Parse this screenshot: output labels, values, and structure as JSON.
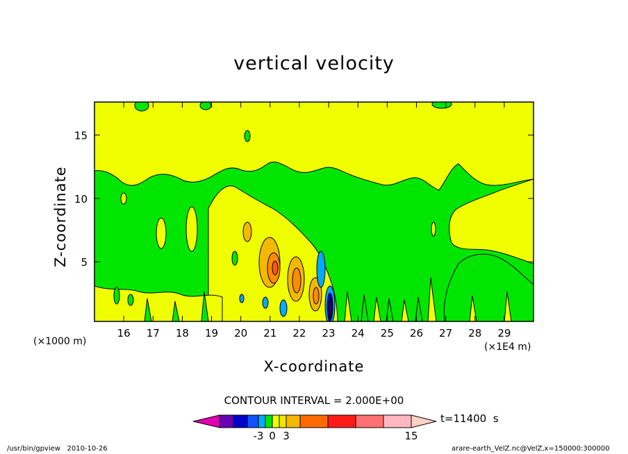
{
  "chart_data": {
    "type": "heatmap",
    "title": "vertical velocity",
    "xlabel": "X-coordinate",
    "ylabel": "Z-coordinate",
    "x_ticks": [
      "16",
      "17",
      "18",
      "19",
      "20",
      "21",
      "22",
      "23",
      "24",
      "25",
      "26",
      "27",
      "28",
      "29"
    ],
    "x_tick_values": [
      16,
      17,
      18,
      19,
      20,
      21,
      22,
      23,
      24,
      25,
      26,
      27,
      28,
      29
    ],
    "y_ticks": [
      "5",
      "10",
      "15"
    ],
    "y_tick_values": [
      5,
      10,
      15
    ],
    "xlim": [
      15.0,
      30.0
    ],
    "ylim": [
      0.3,
      17.6
    ],
    "x_unit_left": "(×1000 m)",
    "x_unit_right": "(×1E4 m)",
    "contour_interval_label": "CONTOUR INTERVAL = 2.000E+00",
    "time_label": "t=11400  s",
    "colorbar_levels": [
      -9,
      -7,
      -5,
      -3,
      -1,
      0,
      1,
      3,
      5,
      7,
      9,
      11,
      13,
      15,
      17
    ],
    "colorbar_tick_labels": [
      "-3",
      "0",
      "3",
      "15"
    ],
    "colorbar_tick_values": [
      -3,
      0,
      3,
      15
    ],
    "colors": {
      "background_dominant": "#f0ff00",
      "secondary": "#00e600",
      "positive_peak": "#ff6a00",
      "negative": "#00aaff",
      "frame": "#000000"
    },
    "features": [
      {
        "x": 21.25,
        "z": 4.5,
        "value": 9
      },
      {
        "x": 21.9,
        "z": 3.4,
        "value": 7
      },
      {
        "x": 22.5,
        "z": 2.2,
        "value": 5
      },
      {
        "x": 23.05,
        "z": 1.3,
        "value": -9
      },
      {
        "x": 22.8,
        "z": 4.5,
        "value": -3
      }
    ]
  },
  "footer": {
    "left": "/usr/bin/gpview   2010-10-26",
    "right": "arare-earth_VelZ.nc@VelZ,x=150000:300000"
  }
}
